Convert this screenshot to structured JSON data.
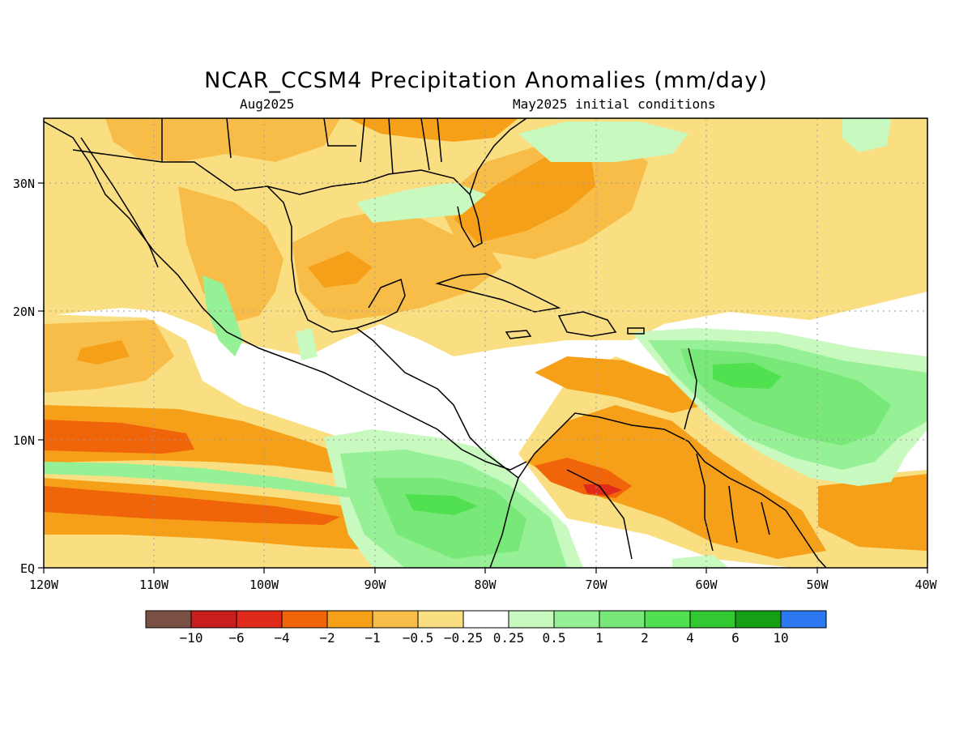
{
  "title": "NCAR_CCSM4 Precipitation Anomalies (mm/day)",
  "subtitle_left": "Aug2025",
  "subtitle_right": "May2025 initial conditions",
  "map": {
    "lon_labels": [
      "120W",
      "110W",
      "100W",
      "90W",
      "80W",
      "70W",
      "60W",
      "50W",
      "40W"
    ],
    "lat_labels": [
      "EQ",
      "10N",
      "20N",
      "30N"
    ],
    "lon_range": [
      -120,
      -40
    ],
    "lat_range": [
      0,
      35
    ],
    "grid": "dotted"
  },
  "colorbar": {
    "colors": [
      "#7a4f44",
      "#c81e1e",
      "#e02a1a",
      "#f0640a",
      "#f5a018",
      "#f8bd48",
      "#fadf82",
      "#ffffff",
      "#c8fac0",
      "#96f096",
      "#78e878",
      "#50e050",
      "#32c832",
      "#14a014",
      "#2b78f0"
    ],
    "labels": [
      "-10",
      "-6",
      "-4",
      "-2",
      "-1",
      "-0.5",
      "-0.25",
      "0.25",
      "0.5",
      "1",
      "2",
      "4",
      "6",
      "10"
    ]
  },
  "colors": {
    "orange_strong": "#f0640a",
    "orange": "#f5a018",
    "light_orange": "#f8bd48",
    "yellow": "#fadf82",
    "light_green": "#c8fac0",
    "green": "#96f096",
    "mid_green": "#78e878",
    "bright_green": "#50e050",
    "red": "#e02a1a"
  }
}
